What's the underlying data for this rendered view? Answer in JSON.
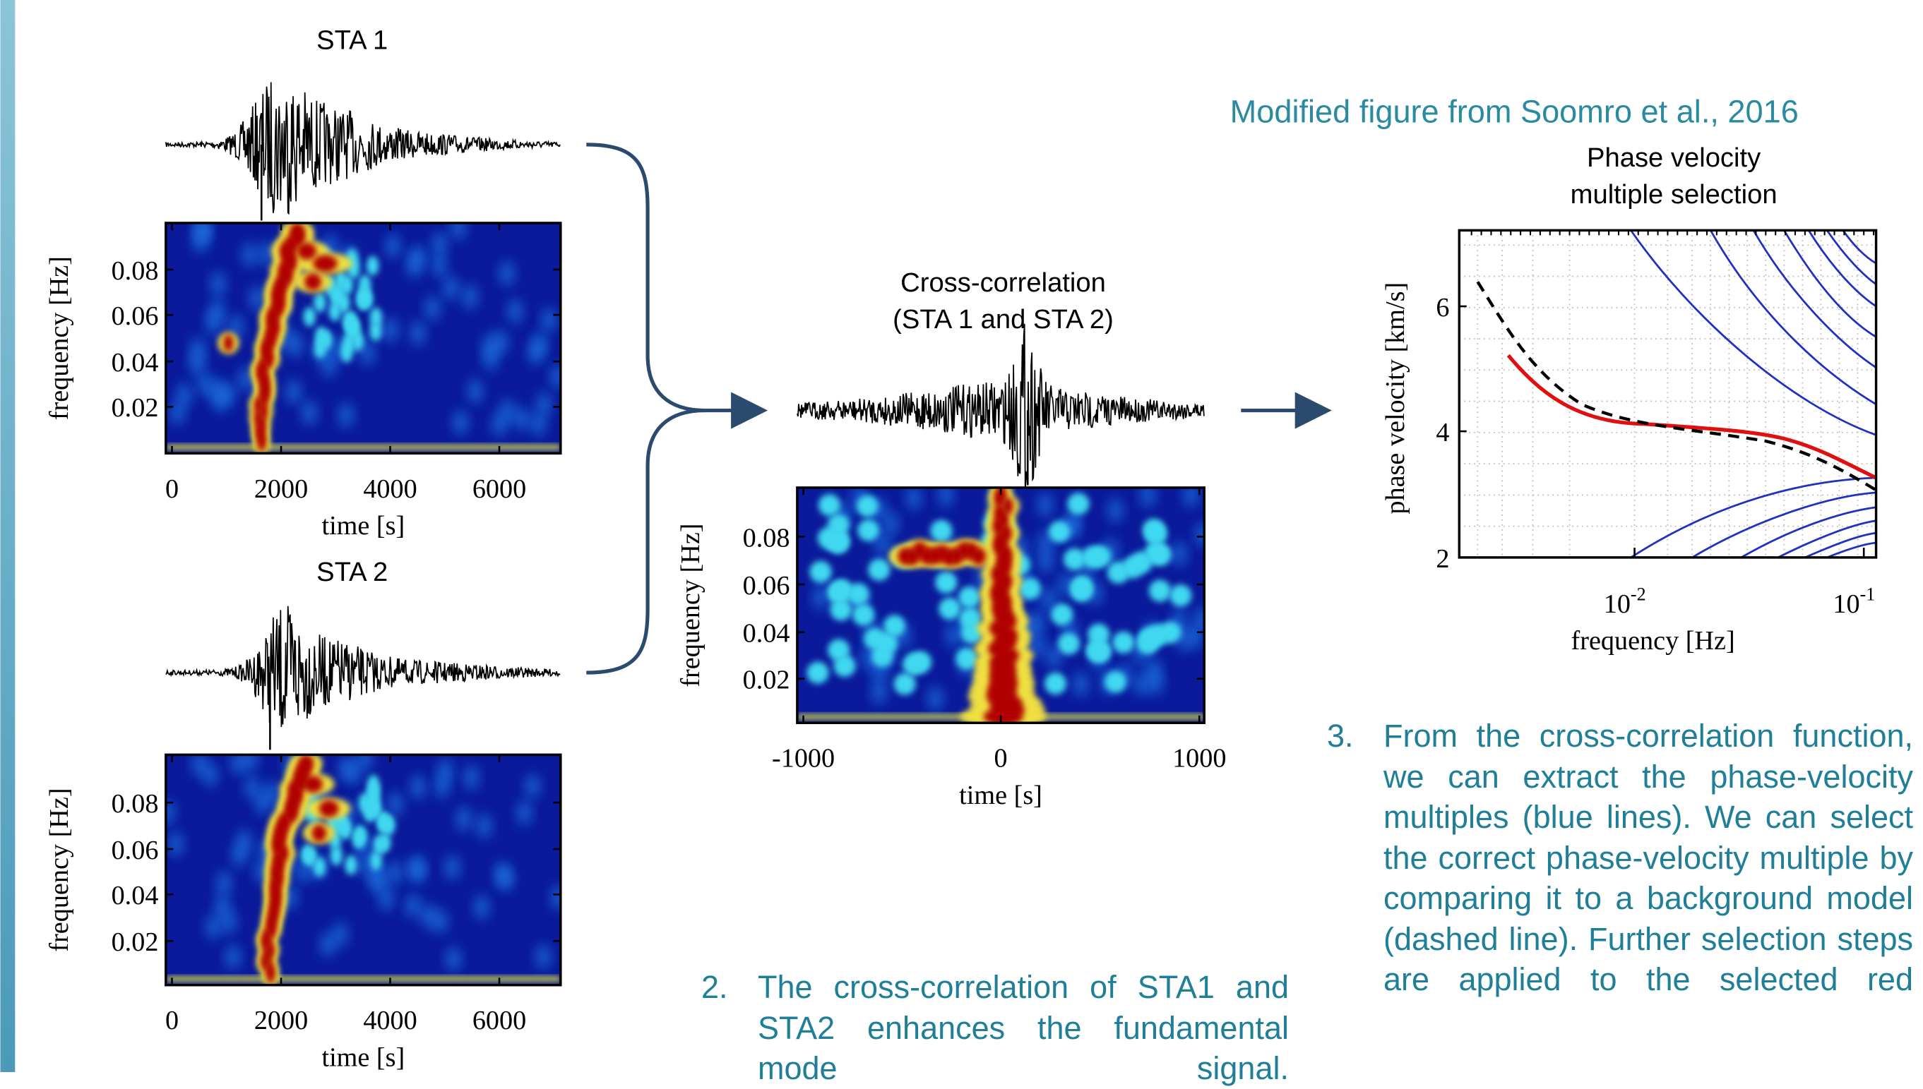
{
  "sta1": {
    "title": "STA 1",
    "y_label": "frequency  [Hz]",
    "x_label": "time  [s]",
    "y_ticks": [
      "0.08",
      "0.06",
      "0.04",
      "0.02"
    ],
    "x_ticks": [
      "0",
      "2000",
      "4000",
      "6000"
    ]
  },
  "sta2": {
    "title": "STA 2",
    "y_label": "frequency  [Hz]",
    "x_label": "time  [s]",
    "y_ticks": [
      "0.08",
      "0.06",
      "0.04",
      "0.02"
    ],
    "x_ticks": [
      "0",
      "2000",
      "4000",
      "6000"
    ]
  },
  "cross": {
    "title_lines": [
      "Cross-correlation",
      "(STA 1 and STA 2)"
    ],
    "y_label": "frequency  [Hz]",
    "x_label": "time  [s]",
    "y_ticks": [
      "0.08",
      "0.06",
      "0.04",
      "0.02"
    ],
    "x_ticks": [
      "-1000",
      "0",
      "1000"
    ]
  },
  "source": "Modified figure from Soomro et al., 2016",
  "phase": {
    "title_lines": [
      "Phase velocity",
      "multiple selection"
    ],
    "y_label": "phase  velocity  [km/s]",
    "x_label": "frequency  [Hz]",
    "y_ticks": [
      "6",
      "4",
      "2"
    ],
    "x_ticks": [
      {
        "base": "10",
        "exp": "-2"
      },
      {
        "base": "10",
        "exp": "-1"
      }
    ]
  },
  "steps": [
    {
      "number": "2.",
      "text": "The cross-correlation of STA1 and STA2 enhances the fundamental mode signal."
    },
    {
      "number": "3.",
      "text": "From the cross-correlation function, we can extract the phase-velocity multiples (blue lines). We can select the correct phase-velocity multiple by comparing it to a background model (dashed line). Further selection steps are applied to the selected red"
    }
  ]
}
